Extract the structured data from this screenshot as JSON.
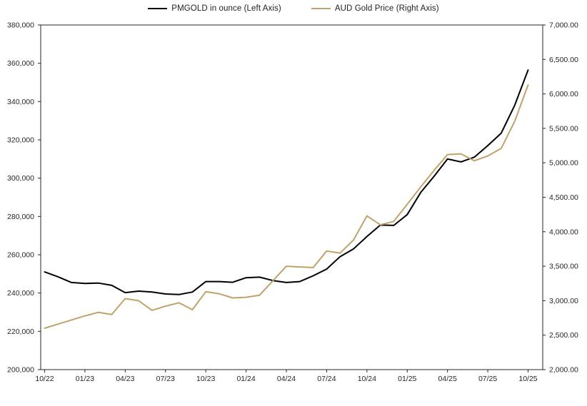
{
  "legend": {
    "items": [
      {
        "id": "pmgold",
        "label": "PMGOLD in ounce (Left Axis)",
        "color": "#000000"
      },
      {
        "id": "aud-gold",
        "label": "AUD Gold Price (Right Axis)",
        "color": "#C2A26A"
      }
    ]
  },
  "colors": {
    "pmgold_line": "#000000",
    "aud_gold_line": "#C2A26A",
    "axis_line": "#262626",
    "tick_label": "#262626",
    "background": "#ffffff"
  },
  "chart_data": {
    "type": "line",
    "title": "",
    "xlabel": "",
    "ylabel_left": "",
    "ylabel_right": "",
    "grid": false,
    "legend_position": "top",
    "x": [
      "10/22",
      "11/22",
      "12/22",
      "01/23",
      "02/23",
      "03/23",
      "04/23",
      "05/23",
      "06/23",
      "07/23",
      "08/23",
      "09/23",
      "10/23",
      "11/23",
      "12/23",
      "01/24",
      "02/24",
      "03/24",
      "04/24",
      "05/24",
      "06/24",
      "07/24",
      "08/24",
      "09/24",
      "10/24",
      "11/24",
      "12/24",
      "01/25",
      "02/25",
      "03/25",
      "04/25",
      "05/25",
      "06/25",
      "07/25",
      "08/25",
      "09/25",
      "10/25"
    ],
    "x_tick_labels": [
      "10/22",
      "01/23",
      "04/23",
      "07/23",
      "10/23",
      "01/24",
      "04/24",
      "07/24",
      "10/24",
      "01/25",
      "04/25",
      "07/25",
      "10/25"
    ],
    "x_tick_every": 3,
    "series": [
      {
        "name": "PMGOLD in ounce (Left Axis)",
        "axis": "left",
        "color": "#000000",
        "values": [
          251000,
          248500,
          245500,
          245000,
          245200,
          244000,
          240200,
          241000,
          240500,
          239500,
          239200,
          240500,
          246000,
          246000,
          245600,
          248000,
          248300,
          246500,
          245500,
          246000,
          249000,
          252500,
          259000,
          263000,
          269500,
          275500,
          275300,
          281000,
          292500,
          301000,
          310000,
          308500,
          311000,
          317000,
          323500,
          338000,
          356500
        ]
      },
      {
        "name": "AUD Gold Price (Right Axis)",
        "axis": "right",
        "color": "#C2A26A",
        "values": [
          2600,
          2660,
          2720,
          2780,
          2830,
          2800,
          3030,
          3000,
          2860,
          2920,
          2970,
          2870,
          3130,
          3100,
          3040,
          3050,
          3080,
          3290,
          3500,
          3490,
          3480,
          3720,
          3690,
          3880,
          4230,
          4100,
          4150,
          4400,
          4650,
          4890,
          5120,
          5130,
          5030,
          5100,
          5210,
          5600,
          6130
        ]
      }
    ],
    "left_axis": {
      "min": 200000,
      "max": 380000,
      "step": 20000,
      "tick_labels_top_to_bottom": [
        "380,000",
        "360,000",
        "340,000",
        "320,000",
        "300,000",
        "280,000",
        "260,000",
        "240,000",
        "220,000",
        "200,000"
      ]
    },
    "right_axis": {
      "min": 2000,
      "max": 7000,
      "step": 500,
      "tick_labels_top_to_bottom": [
        "7,000.00",
        "6,500.00",
        "6,000.00",
        "5,500.00",
        "5,000.00",
        "4,500.00",
        "4,000.00",
        "3,500.00",
        "3,000.00",
        "2,500.00",
        "2,000.00"
      ]
    }
  }
}
